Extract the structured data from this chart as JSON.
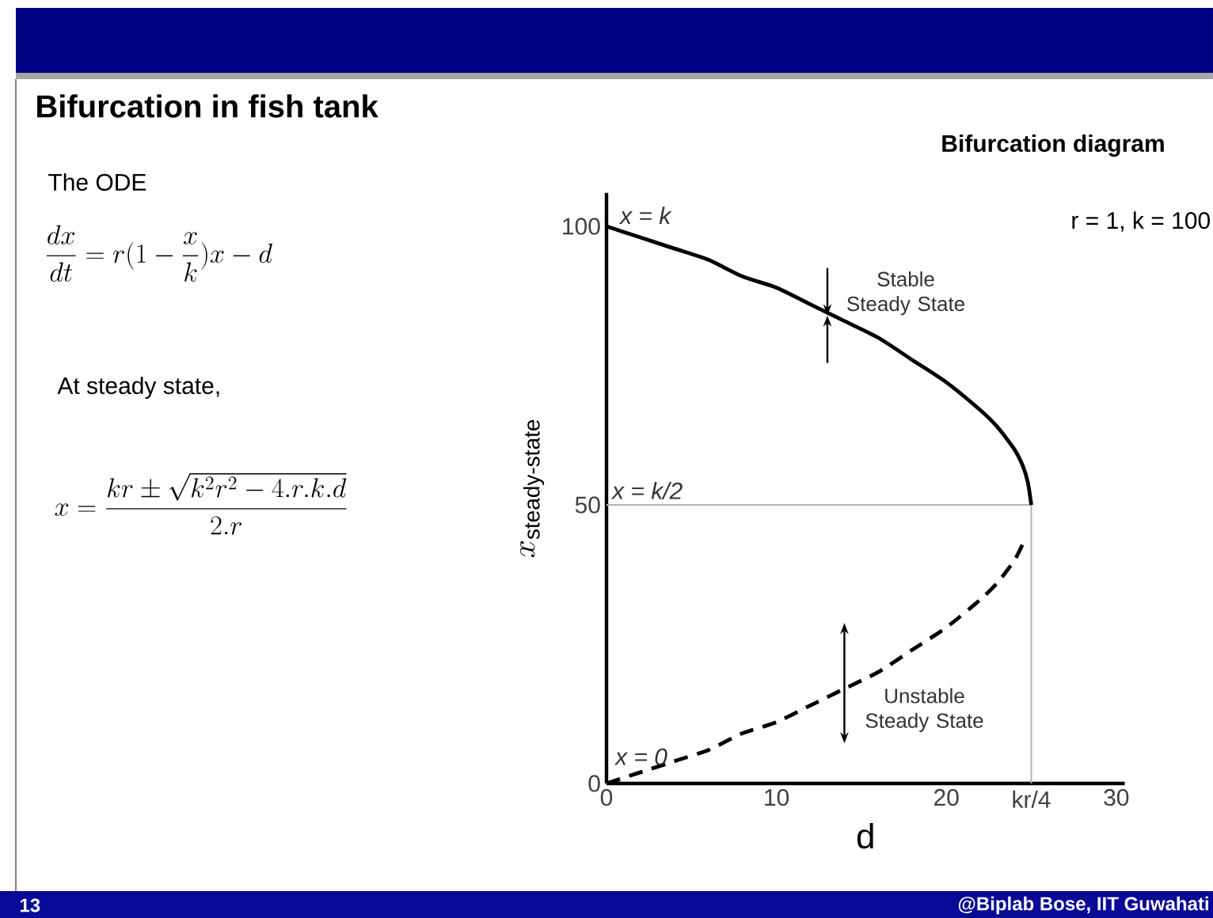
{
  "chart_data": {
    "type": "line",
    "title": "Bifurcation diagram",
    "xlabel": "d",
    "ylabel": "x_{\\mathrm{steady\\text{-}state}}",
    "x": [
      0,
      2,
      4,
      6,
      8,
      10,
      12,
      14,
      16,
      18,
      20,
      22,
      23,
      24,
      24.5,
      24.8,
      25
    ],
    "series": [
      {
        "color": "#000000",
        "line_style": "solid",
        "values": [
          100,
          98,
          96,
          94,
          91,
          89,
          86,
          83,
          80,
          76,
          72,
          67,
          64,
          60,
          57,
          54,
          50
        ]
      },
      {
        "color": "#000000",
        "line_style": "dashed",
        "values": [
          0,
          2,
          4,
          6,
          9,
          11,
          14,
          17,
          20,
          24,
          28,
          33,
          36,
          40,
          43,
          null,
          null
        ]
      }
    ],
    "xlim": [
      0,
      30.5
    ],
    "ylim": [
      0,
      106
    ],
    "xticks": [
      0,
      10,
      20,
      30
    ],
    "yticks": [
      0,
      50,
      100
    ],
    "marker": "none",
    "ref_lines": [
      {
        "axis": "y",
        "value": 50,
        "label": "x = k/2",
        "color": "#b4b4b4"
      },
      {
        "axis": "x",
        "value": 25,
        "label": "kr/4",
        "color": "#b4b4b4"
      }
    ],
    "annotations": [
      {
        "text": "x = k",
        "x": 0,
        "y": 100
      },
      {
        "text": "x = 0",
        "x": 0,
        "y": 0
      },
      {
        "text": "Stable Steady State",
        "x": 13,
        "y": 84
      },
      {
        "text": "Unstable Steady State",
        "x": 14,
        "y": 18
      },
      "r = 1, k = 100",
      "Bifurcation in fish tank",
      "The ODE",
      "\\frac{dx}{dt}=r(1-\\frac{x}{k})x-d",
      "At steady state,",
      "x=\\frac{kr\\pm\\sqrt{k^2r^2-4.r.k.d}}{2.r}",
      "@Biplab Bose, IIT Guwahati",
      "13"
    ]
  }
}
